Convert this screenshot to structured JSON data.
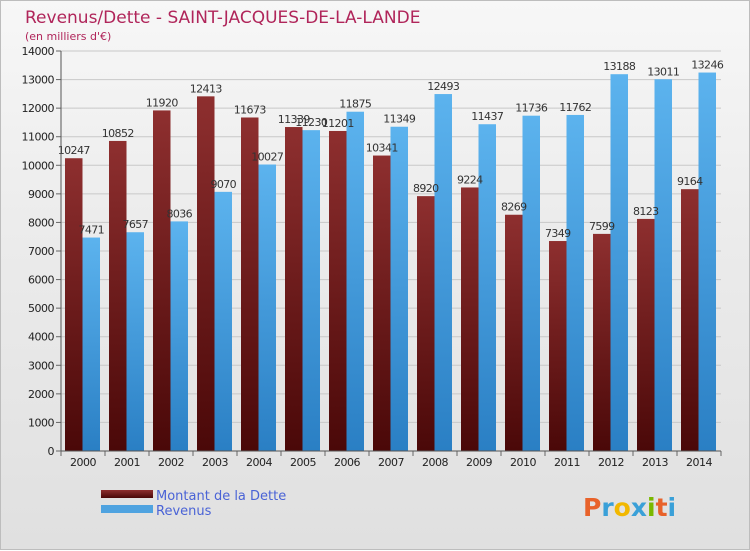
{
  "chart_data": {
    "type": "bar",
    "title": "Revenus/Dette - SAINT-JACQUES-DE-LA-LANDE",
    "subtitle": "(en milliers d'€)",
    "categories": [
      "2000",
      "2001",
      "2002",
      "2003",
      "2004",
      "2005",
      "2006",
      "2007",
      "2008",
      "2009",
      "2010",
      "2011",
      "2012",
      "2013",
      "2014"
    ],
    "series": [
      {
        "name": "Montant de la Dette",
        "color": "#7a1a1a",
        "values": [
          10247,
          10852,
          11920,
          12413,
          11673,
          11339,
          11201,
          10341,
          8920,
          9224,
          8269,
          7349,
          7599,
          8123,
          9164
        ]
      },
      {
        "name": "Revenus",
        "color": "#4fa3e0",
        "values": [
          7471,
          7657,
          8036,
          9070,
          10027,
          11230,
          11875,
          11349,
          12493,
          11437,
          11736,
          11762,
          13188,
          13011,
          13246
        ]
      }
    ],
    "y_ticks": [
      0,
      1000,
      2000,
      3000,
      4000,
      5000,
      6000,
      7000,
      8000,
      9000,
      10000,
      11000,
      12000,
      13000,
      14000
    ],
    "ylim": [
      0,
      14000
    ],
    "grid": true,
    "legend": "bottom-left"
  },
  "logo": {
    "text": "Proxiti",
    "letters": [
      "P",
      "r",
      "o",
      "x",
      "i",
      "t",
      "i"
    ],
    "colors": [
      "#e8622a",
      "#3aa0d8",
      "#f2b800",
      "#3aa0d8",
      "#7ab800",
      "#e8622a",
      "#3aa0d8"
    ]
  }
}
